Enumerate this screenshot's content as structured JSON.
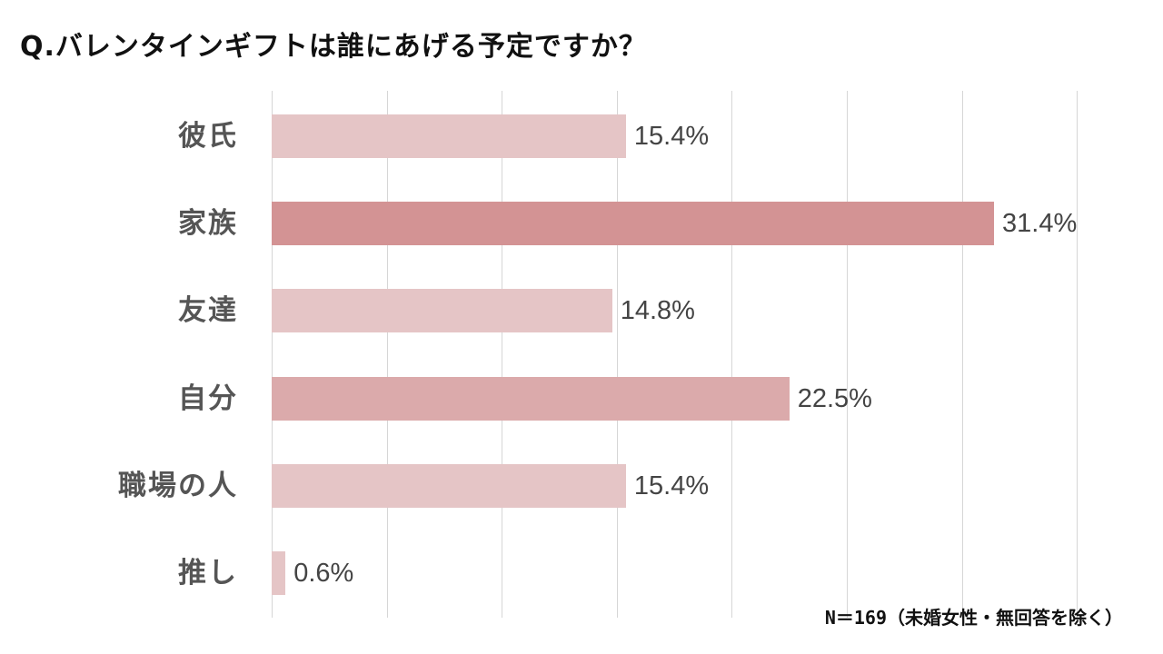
{
  "title": "Q.バレンタインギフトは誰にあげる予定ですか？",
  "note": "N＝169（未婚女性・無回答を除く）",
  "chart_data": {
    "type": "bar",
    "orientation": "horizontal",
    "title": "Q.バレンタインギフトは誰にあげる予定ですか？",
    "categories": [
      "彼氏",
      "家族",
      "友達",
      "自分",
      "職場の人",
      "推し"
    ],
    "values": [
      15.4,
      31.4,
      14.8,
      22.5,
      15.4,
      0.6
    ],
    "labels": [
      "15.4%",
      "31.4%",
      "14.8%",
      "22.5%",
      "15.4%",
      "0.6%"
    ],
    "colors": [
      "#e5c5c6",
      "#d39394",
      "#e5c5c6",
      "#dbaaab",
      "#e5c5c6",
      "#e5c5c6"
    ],
    "xlabel": "",
    "ylabel": "",
    "xlim": [
      0,
      35
    ],
    "grid_step": 5,
    "grid": true,
    "legend": "none",
    "annotation": "N＝169（未婚女性・無回答を除く）"
  }
}
